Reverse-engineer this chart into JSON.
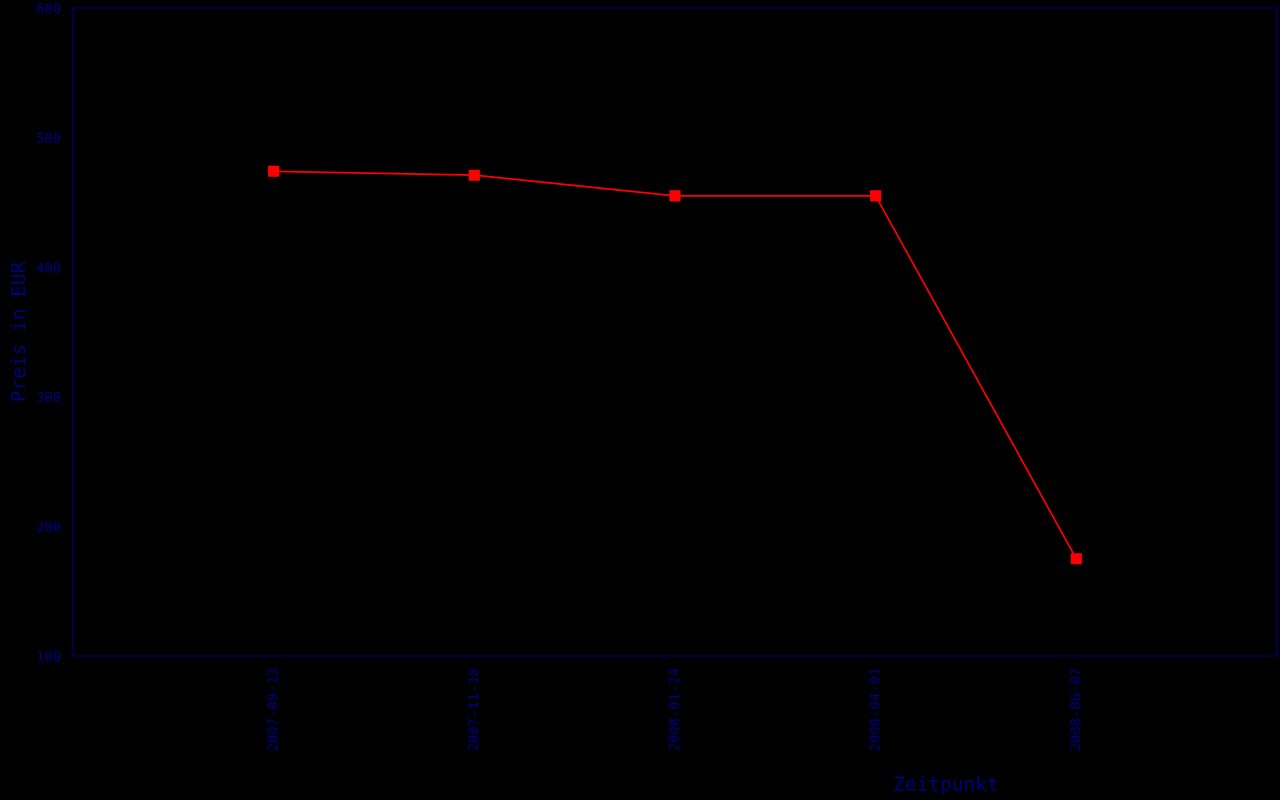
{
  "chart_data": {
    "type": "line",
    "xlabel": "Zeitpunkt",
    "ylabel": "Preis in EUR",
    "categories": [
      "2007-09-13",
      "2007-11-18",
      "2008-01-24",
      "2008-04-01",
      "2008-06-07"
    ],
    "series": [
      {
        "color": "#ff0000",
        "values": [
          474,
          471,
          455,
          455,
          175
        ]
      }
    ],
    "ylim": [
      100,
      600
    ],
    "yticks": [
      100,
      200,
      300,
      400,
      500,
      600
    ],
    "grid": false,
    "marker": "square",
    "line_style": "solid"
  }
}
